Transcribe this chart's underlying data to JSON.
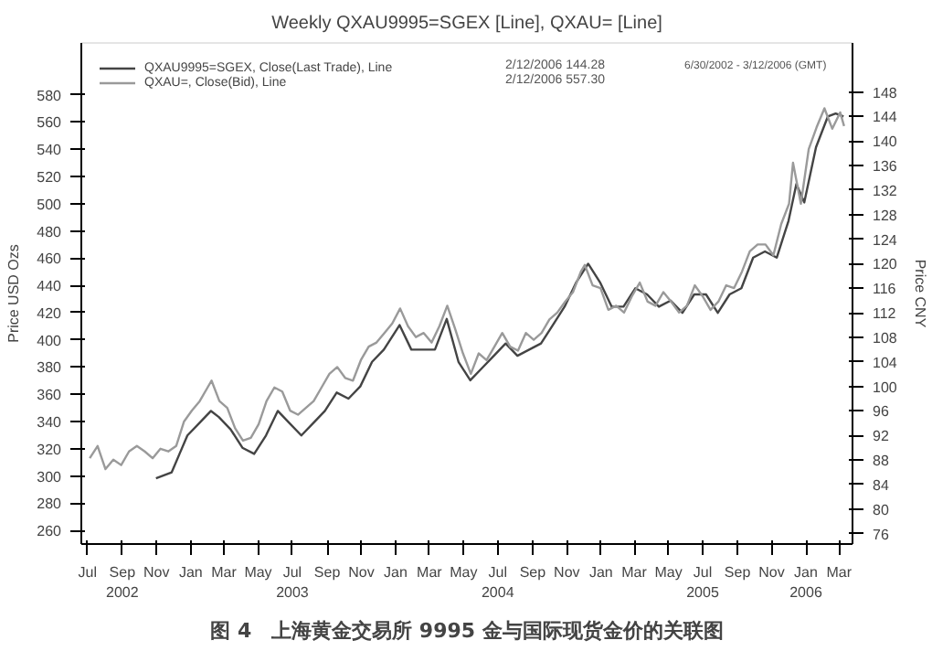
{
  "chart_data": {
    "type": "line",
    "title": "Weekly QXAU9995=SGEX [Line], QXAU= [Line]",
    "subtitle": "图 4　上海黄金交易所 9995 金与国际现货金价的关联图",
    "ylabel": "Price USD Ozs",
    "y2label": "Price CNY",
    "annotations": [
      "2/12/2006 144.28",
      "2/12/2006 557.30",
      "6/30/2002 - 3/12/2006 (GMT)"
    ],
    "legend": "top left",
    "grid": false,
    "line_style": "solid",
    "marker": "none",
    "xlim": [
      "2002-06-20",
      "2006-03-25"
    ],
    "xticks": [
      {
        "value": "2002-07-01",
        "label": "Jul"
      },
      {
        "value": "2002-09-01",
        "label": "Sep\n2002"
      },
      {
        "value": "2002-11-01",
        "label": "Nov"
      },
      {
        "value": "2003-01-01",
        "label": "Jan"
      },
      {
        "value": "2003-03-01",
        "label": "Mar"
      },
      {
        "value": "2003-05-01",
        "label": "May"
      },
      {
        "value": "2003-07-01",
        "label": "Jul\n2003"
      },
      {
        "value": "2003-09-01",
        "label": "Sep"
      },
      {
        "value": "2003-11-01",
        "label": "Nov"
      },
      {
        "value": "2004-01-01",
        "label": "Jan"
      },
      {
        "value": "2004-03-01",
        "label": "Mar"
      },
      {
        "value": "2004-05-01",
        "label": "May"
      },
      {
        "value": "2004-07-01",
        "label": "Jul\n2004"
      },
      {
        "value": "2004-09-01",
        "label": "Sep"
      },
      {
        "value": "2004-11-01",
        "label": "Nov"
      },
      {
        "value": "2005-01-01",
        "label": "Jan"
      },
      {
        "value": "2005-03-01",
        "label": "Mar"
      },
      {
        "value": "2005-05-01",
        "label": "May"
      },
      {
        "value": "2005-07-01",
        "label": "Jul\n2005"
      },
      {
        "value": "2005-09-01",
        "label": "Sep"
      },
      {
        "value": "2005-11-01",
        "label": "Nov"
      },
      {
        "value": "2006-01-01",
        "label": "Jan\n2006"
      },
      {
        "value": "2006-03-01",
        "label": "Mar"
      }
    ],
    "ylim": [
      250,
      618
    ],
    "yticks": [
      260,
      280,
      300,
      320,
      340,
      360,
      380,
      400,
      420,
      440,
      460,
      480,
      500,
      520,
      540,
      560,
      580
    ],
    "y2lim": [
      74.3,
      156
    ],
    "y2ticks": [
      76,
      80,
      84,
      88,
      92,
      96,
      100,
      104,
      108,
      112,
      116,
      120,
      124,
      128,
      132,
      136,
      140,
      144,
      148
    ],
    "series": [
      {
        "name": "QXAU9995=SGEX, Close(Last Trade), Line",
        "color": "#444444",
        "axis": "y2",
        "x": [
          "2002-10-31",
          "2002-11-14",
          "2002-11-28",
          "2002-12-12",
          "2002-12-26",
          "2003-01-16",
          "2003-02-06",
          "2003-02-20",
          "2003-03-13",
          "2003-04-03",
          "2003-04-24",
          "2003-05-15",
          "2003-06-05",
          "2003-06-26",
          "2003-07-17",
          "2003-08-07",
          "2003-08-28",
          "2003-09-18",
          "2003-10-09",
          "2003-10-30",
          "2003-11-20",
          "2003-12-11",
          "2004-01-08",
          "2004-01-29",
          "2004-02-19",
          "2004-03-11",
          "2004-04-01",
          "2004-04-22",
          "2004-05-13",
          "2004-06-03",
          "2004-06-24",
          "2004-07-15",
          "2004-08-05",
          "2004-08-26",
          "2004-09-16",
          "2004-10-07",
          "2004-10-28",
          "2004-11-18",
          "2004-12-09",
          "2004-12-30",
          "2005-01-20",
          "2005-02-10",
          "2005-03-03",
          "2005-03-24",
          "2005-04-14",
          "2005-05-05",
          "2005-05-26",
          "2005-06-16",
          "2005-07-07",
          "2005-07-28",
          "2005-08-18",
          "2005-09-08",
          "2005-09-29",
          "2005-10-20",
          "2005-11-10",
          "2005-12-01",
          "2005-12-15",
          "2005-12-29",
          "2006-01-19",
          "2006-02-09",
          "2006-02-23",
          "2006-03-09"
        ],
        "values": [
          85,
          85.5,
          86,
          89,
          92,
          94,
          96,
          95,
          93,
          90,
          89,
          92,
          96,
          94,
          92,
          94,
          96,
          99,
          98,
          100,
          104,
          106,
          110,
          106,
          106,
          106,
          111,
          104,
          101,
          103,
          105,
          107,
          105,
          106,
          107,
          110,
          113,
          117,
          120,
          117,
          113,
          113,
          116,
          115,
          113,
          114,
          112,
          115,
          115,
          112,
          115,
          116,
          121,
          122,
          121,
          127,
          133,
          130,
          139,
          144,
          144.5,
          144
        ]
      },
      {
        "name": "QXAU=, Close(Bid), Line",
        "color": "#9a9a9a",
        "x": [
          "2002-07-05",
          "2002-07-19",
          "2002-08-02",
          "2002-08-16",
          "2002-08-30",
          "2002-09-13",
          "2002-09-27",
          "2002-10-11",
          "2002-10-25",
          "2002-11-08",
          "2002-11-22",
          "2002-12-06",
          "2002-12-20",
          "2003-01-03",
          "2003-01-17",
          "2003-01-31",
          "2003-02-07",
          "2003-02-21",
          "2003-03-07",
          "2003-03-21",
          "2003-04-04",
          "2003-04-18",
          "2003-05-02",
          "2003-05-16",
          "2003-05-30",
          "2003-06-13",
          "2003-06-27",
          "2003-07-11",
          "2003-07-25",
          "2003-08-08",
          "2003-08-22",
          "2003-09-05",
          "2003-09-19",
          "2003-10-03",
          "2003-10-17",
          "2003-10-31",
          "2003-11-14",
          "2003-11-28",
          "2003-12-12",
          "2003-12-26",
          "2004-01-09",
          "2004-01-23",
          "2004-02-06",
          "2004-02-20",
          "2004-03-05",
          "2004-03-19",
          "2004-04-02",
          "2004-04-16",
          "2004-04-30",
          "2004-05-14",
          "2004-05-28",
          "2004-06-11",
          "2004-06-25",
          "2004-07-09",
          "2004-07-23",
          "2004-08-06",
          "2004-08-20",
          "2004-09-03",
          "2004-09-17",
          "2004-10-01",
          "2004-10-15",
          "2004-10-29",
          "2004-11-12",
          "2004-11-26",
          "2004-12-03",
          "2004-12-17",
          "2004-12-31",
          "2005-01-14",
          "2005-01-28",
          "2005-02-11",
          "2005-02-25",
          "2005-03-11",
          "2005-03-25",
          "2005-04-08",
          "2005-04-22",
          "2005-05-06",
          "2005-05-20",
          "2005-06-03",
          "2005-06-17",
          "2005-07-01",
          "2005-07-15",
          "2005-07-29",
          "2005-08-12",
          "2005-08-26",
          "2005-09-09",
          "2005-09-23",
          "2005-10-07",
          "2005-10-21",
          "2005-11-04",
          "2005-11-18",
          "2005-12-02",
          "2005-12-09",
          "2005-12-23",
          "2006-01-06",
          "2006-01-20",
          "2006-02-03",
          "2006-02-17",
          "2006-03-03",
          "2006-03-10"
        ],
        "values": [
          313,
          322,
          305,
          312,
          308,
          318,
          322,
          318,
          313,
          320,
          318,
          322,
          340,
          348,
          355,
          365,
          370,
          355,
          350,
          335,
          326,
          328,
          338,
          355,
          365,
          362,
          348,
          345,
          350,
          355,
          365,
          375,
          380,
          372,
          370,
          385,
          395,
          398,
          405,
          412,
          423,
          410,
          402,
          405,
          398,
          410,
          425,
          408,
          390,
          375,
          390,
          385,
          395,
          405,
          395,
          392,
          405,
          400,
          405,
          415,
          420,
          428,
          435,
          450,
          455,
          440,
          438,
          422,
          425,
          420,
          432,
          442,
          428,
          425,
          435,
          428,
          420,
          425,
          440,
          432,
          422,
          428,
          440,
          438,
          450,
          465,
          470,
          470,
          462,
          485,
          500,
          530,
          500,
          540,
          556,
          570,
          555,
          567,
          557
        ]
      }
    ]
  }
}
